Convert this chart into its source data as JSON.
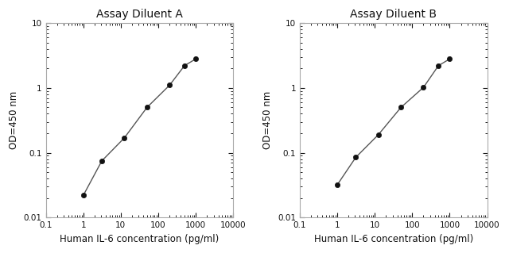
{
  "chart_A": {
    "title": "Assay Diluent A",
    "x": [
      1,
      3.125,
      12.5,
      50,
      200,
      500,
      1000
    ],
    "y": [
      0.022,
      0.075,
      0.17,
      0.5,
      1.1,
      2.2,
      2.8
    ]
  },
  "chart_B": {
    "title": "Assay Diluent B",
    "x": [
      1,
      3.125,
      12.5,
      50,
      200,
      500,
      1000
    ],
    "y": [
      0.032,
      0.085,
      0.19,
      0.5,
      1.02,
      2.2,
      2.8
    ]
  },
  "xlabel": "Human IL-6 concentration (pg/ml)",
  "ylabel": "OD=450 nm",
  "xlim": [
    0.1,
    10000
  ],
  "ylim": [
    0.01,
    10
  ],
  "line_color": "#555555",
  "marker_color": "#111111",
  "title_fontsize": 10,
  "label_fontsize": 8.5,
  "tick_fontsize": 7.5,
  "marker_size": 4.5,
  "line_width": 1.0,
  "background_color": "#ffffff",
  "spine_color": "#aaaaaa",
  "xticks": [
    0.1,
    1,
    10,
    100,
    1000,
    10000
  ],
  "yticks": [
    0.01,
    0.1,
    1,
    10
  ],
  "xtick_labels": [
    "0.1",
    "1",
    "10",
    "100",
    "1000",
    "10000"
  ],
  "ytick_labels": [
    "0.01",
    "0.1",
    "1",
    "10"
  ]
}
